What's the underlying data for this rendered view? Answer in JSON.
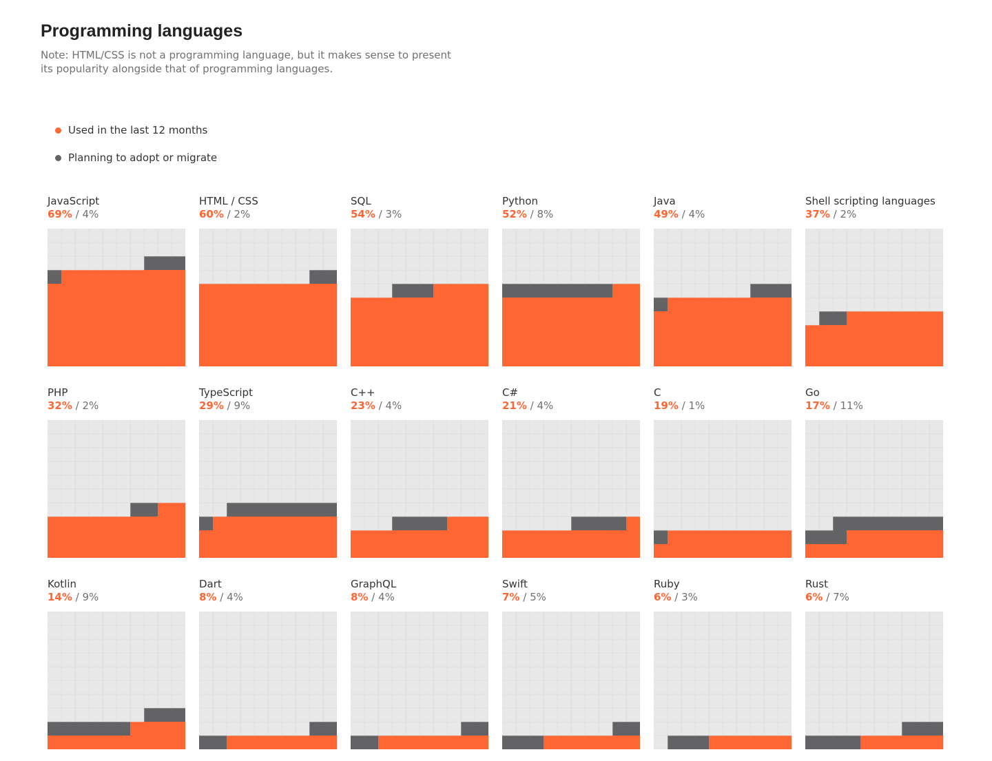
{
  "header": {
    "title": "Programming languages",
    "note": "Note: HTML/CSS is not a programming language, but it makes sense to present its popularity alongside that of programming languages."
  },
  "legend": {
    "used_label": "Used in the last 12 months",
    "planning_label": "Planning to adopt or migrate"
  },
  "colors": {
    "used": "#ff6633",
    "planning": "#636366",
    "empty": "#e8e8e8",
    "grid": "#dcdcdc"
  },
  "languages": [
    {
      "name": "JavaScript",
      "used_text": "69%",
      "planning_text": "4%"
    },
    {
      "name": "HTML / CSS",
      "used_text": "60%",
      "planning_text": "2%"
    },
    {
      "name": "SQL",
      "used_text": "54%",
      "planning_text": "3%"
    },
    {
      "name": "Python",
      "used_text": "52%",
      "planning_text": "8%"
    },
    {
      "name": "Java",
      "used_text": "49%",
      "planning_text": "4%"
    },
    {
      "name": "Shell scripting languages",
      "used_text": "37%",
      "planning_text": "2%"
    },
    {
      "name": "PHP",
      "used_text": "32%",
      "planning_text": "2%"
    },
    {
      "name": "TypeScript",
      "used_text": "29%",
      "planning_text": "9%"
    },
    {
      "name": "C++",
      "used_text": "23%",
      "planning_text": "4%"
    },
    {
      "name": "C#",
      "used_text": "21%",
      "planning_text": "4%"
    },
    {
      "name": "C",
      "used_text": "19%",
      "planning_text": "1%"
    },
    {
      "name": "Go",
      "used_text": "17%",
      "planning_text": "11%"
    },
    {
      "name": "Kotlin",
      "used_text": "14%",
      "planning_text": "9%"
    },
    {
      "name": "Dart",
      "used_text": "8%",
      "planning_text": "4%"
    },
    {
      "name": "GraphQL",
      "used_text": "8%",
      "planning_text": "4%"
    },
    {
      "name": "Swift",
      "used_text": "7%",
      "planning_text": "5%"
    },
    {
      "name": "Ruby",
      "used_text": "6%",
      "planning_text": "3%"
    },
    {
      "name": "Rust",
      "used_text": "6%",
      "planning_text": "7%"
    }
  ],
  "chart_data": {
    "type": "waffle",
    "grid": "10x10",
    "series": [
      {
        "name": "Used in the last 12 months",
        "values": [
          69,
          60,
          54,
          52,
          49,
          37,
          32,
          29,
          23,
          21,
          19,
          17,
          14,
          8,
          8,
          7,
          6,
          6
        ]
      },
      {
        "name": "Planning to adopt or migrate",
        "values": [
          4,
          2,
          3,
          8,
          4,
          2,
          2,
          9,
          4,
          4,
          1,
          11,
          9,
          4,
          4,
          5,
          3,
          7
        ]
      }
    ],
    "categories": [
      "JavaScript",
      "HTML / CSS",
      "SQL",
      "Python",
      "Java",
      "Shell scripting languages",
      "PHP",
      "TypeScript",
      "C++",
      "C#",
      "C",
      "Go",
      "Kotlin",
      "Dart",
      "GraphQL",
      "Swift",
      "Ruby",
      "Rust"
    ],
    "unit": "%",
    "legend": "top-left"
  }
}
